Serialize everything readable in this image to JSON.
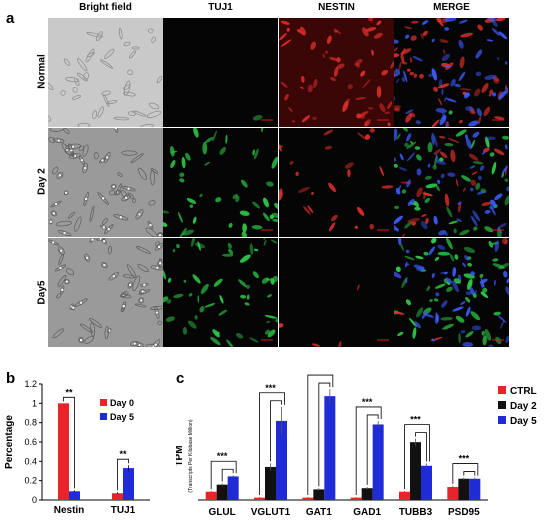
{
  "panel_a": {
    "letter": "a",
    "columns": [
      "Bright field",
      "TUJ1",
      "NESTIN",
      "MERGE"
    ],
    "rows": [
      "Normal",
      "Day 2",
      "Day5"
    ]
  },
  "panel_b": {
    "letter": "b",
    "chart_data": {
      "type": "bar",
      "categories": [
        "Nestin",
        "TUJ1"
      ],
      "series": [
        {
          "name": "Day 0",
          "values": [
            1.0,
            0.07
          ],
          "color": "#e8242a"
        },
        {
          "name": "Day 5",
          "values": [
            0.09,
            0.33
          ],
          "color": "#1f2bd6"
        }
      ],
      "errors": [
        [
          0.0,
          0.01
        ],
        [
          0.01,
          0.03
        ]
      ],
      "ylabel": "Percentage",
      "ylim": [
        0,
        1.2
      ],
      "yticks": [
        "0",
        "0.2",
        "0.4",
        "0.6",
        "0.8",
        "1",
        "1.2"
      ],
      "significance": [
        "**",
        "**"
      ],
      "legend_position": "top-right"
    }
  },
  "panel_c": {
    "letter": "c",
    "chart_data": {
      "type": "bar",
      "categories": [
        "GLUL",
        "VGLUT1",
        "GAT1",
        "GAD1",
        "TUBB3",
        "PSD95"
      ],
      "series": [
        {
          "name": "CTRL",
          "values": [
            0.07,
            0.02,
            0.02,
            0.02,
            0.07,
            0.11
          ],
          "color": "#e8242a"
        },
        {
          "name": "Day 2",
          "values": [
            0.13,
            0.28,
            0.09,
            0.1,
            0.49,
            0.18
          ],
          "color": "#111111"
        },
        {
          "name": "Day 5",
          "values": [
            0.2,
            0.67,
            0.88,
            0.64,
            0.29,
            0.18
          ],
          "color": "#1f2bd6"
        }
      ],
      "errors": [
        [
          0.005,
          0.005,
          0.005,
          0.005,
          0.005,
          0.01
        ],
        [
          0.01,
          0.03,
          0.01,
          0.01,
          0.03,
          0.01
        ],
        [
          0.01,
          0.12,
          0.06,
          0.03,
          0.02,
          0.01
        ]
      ],
      "ylabel": "TPM",
      "ylabel_sub": "(Transcripts Per Kilobase Million)",
      "significance": [
        "***",
        "***",
        "***",
        "***",
        "***",
        "***"
      ],
      "legend_position": "top-right"
    }
  }
}
